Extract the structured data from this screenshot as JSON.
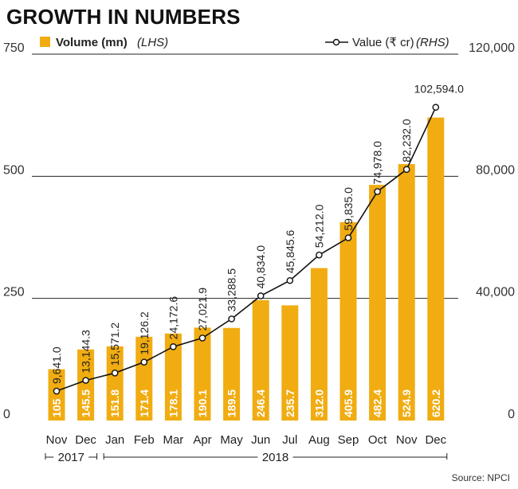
{
  "chart_data": {
    "type": "bar+line",
    "title": "GROWTH IN NUMBERS",
    "legend": {
      "bar_label": "Volume (mn)",
      "bar_axis_note": "(LHS)",
      "line_label": "Value (₹ cr)",
      "line_axis_note": "(RHS)",
      "placement": "top"
    },
    "categories": [
      "Nov",
      "Dec",
      "Jan",
      "Feb",
      "Mar",
      "Apr",
      "May",
      "Jun",
      "Jul",
      "Aug",
      "Sep",
      "Oct",
      "Nov",
      "Dec"
    ],
    "series": [
      {
        "name": "Volume (mn)",
        "kind": "bar",
        "axis": "left",
        "values": [
          105,
          145.5,
          151.8,
          171.4,
          178.1,
          190.1,
          189.5,
          246.4,
          235.7,
          312.0,
          405.9,
          482.4,
          524.9,
          620.2
        ],
        "labels": [
          "105",
          "145.5",
          "151.8",
          "171.4",
          "178.1",
          "190.1",
          "189.5",
          "246.4",
          "235.7",
          "312.0",
          "405.9",
          "482.4",
          "524.9",
          "620.2"
        ]
      },
      {
        "name": "Value (₹ cr)",
        "kind": "line",
        "axis": "right",
        "values": [
          9641.0,
          13144.3,
          15571.2,
          19126.2,
          24172.6,
          27021.9,
          33288.5,
          40834.0,
          45845.6,
          54212.0,
          59835.0,
          74978.0,
          82232.0,
          102594.0
        ],
        "labels": [
          "9,641.0",
          "13,144.3",
          "15,571.2",
          "19,126.2",
          "24,172.6",
          "27,021.9",
          "33,288.5",
          "40,834.0",
          "45,845.6",
          "54,212.0",
          "59,835.0",
          "74,978.0",
          "82,232.0",
          "102,594.0"
        ]
      }
    ],
    "y_left": {
      "range": [
        0,
        750
      ],
      "ticks": [
        0,
        250,
        500,
        750
      ],
      "tick_labels": [
        "0",
        "250",
        "500",
        "750"
      ]
    },
    "y_right": {
      "range": [
        0,
        120000
      ],
      "ticks": [
        0,
        40000,
        80000,
        120000
      ],
      "tick_labels": [
        "0",
        "40,000",
        "80,000",
        "120,000"
      ]
    },
    "year_groups": [
      {
        "label": "2017",
        "from": 0,
        "to": 1
      },
      {
        "label": "2018",
        "from": 2,
        "to": 13
      }
    ],
    "source": "Source: NPCI",
    "colors": {
      "bar": "#F0AC11",
      "line": "#111111",
      "marker_fill": "#ffffff",
      "grid": "#222222"
    }
  }
}
